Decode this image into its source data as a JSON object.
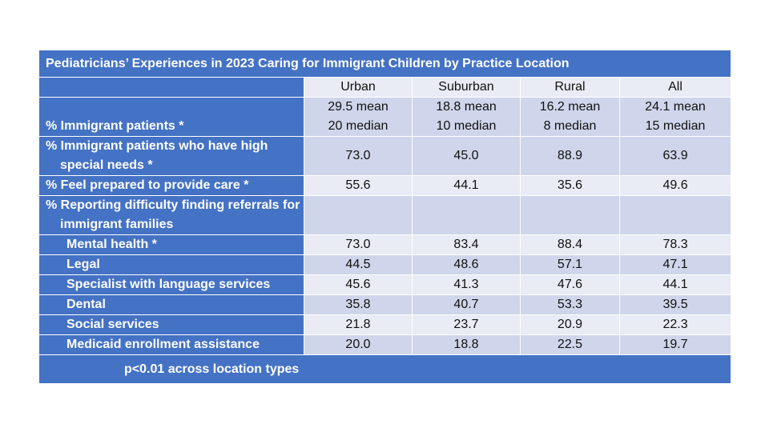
{
  "chart_data": {
    "type": "table",
    "title": "Pediatricians’ Experiences in 2023 Caring for Immigrant Children by Practice Location",
    "columns": [
      "Urban",
      "Suburban",
      "Rural",
      "All"
    ],
    "rows": [
      {
        "label": "% Immigrant patients *",
        "values": [
          "29.5 mean|20 median",
          "18.8 mean|10 median",
          "16.2 mean|8 median",
          "24.1 mean|15 median"
        ]
      },
      {
        "label": "% Immigrant patients who have high special needs *",
        "values": [
          "73.0",
          "45.0",
          "88.9",
          "63.9"
        ]
      },
      {
        "label": "% Feel prepared to provide care *",
        "values": [
          "55.6",
          "44.1",
          "35.6",
          "49.6"
        ]
      },
      {
        "label": "% Reporting difficulty finding referrals for immigrant families",
        "values": [
          "",
          "",
          "",
          ""
        ]
      },
      {
        "label": "Mental health *",
        "values": [
          "73.0",
          "83.4",
          "88.4",
          "78.3"
        ]
      },
      {
        "label": "Legal",
        "values": [
          "44.5",
          "48.6",
          "57.1",
          "47.1"
        ]
      },
      {
        "label": "Specialist with language services",
        "values": [
          "45.6",
          "41.3",
          "47.6",
          "44.1"
        ]
      },
      {
        "label": "Dental",
        "values": [
          "35.8",
          "40.7",
          "53.3",
          "39.5"
        ]
      },
      {
        "label": "Social services",
        "values": [
          "21.8",
          "23.7",
          "20.9",
          "22.3"
        ]
      },
      {
        "label": "Medicaid enrollment assistance",
        "values": [
          "20.0",
          "18.8",
          "22.5",
          "19.7"
        ]
      }
    ],
    "footnote": "p<0.01 across location types"
  },
  "colors": {
    "header_blue": "#4472C4",
    "row_light": "#E9EBF5",
    "row_dark": "#CFD5EA"
  }
}
